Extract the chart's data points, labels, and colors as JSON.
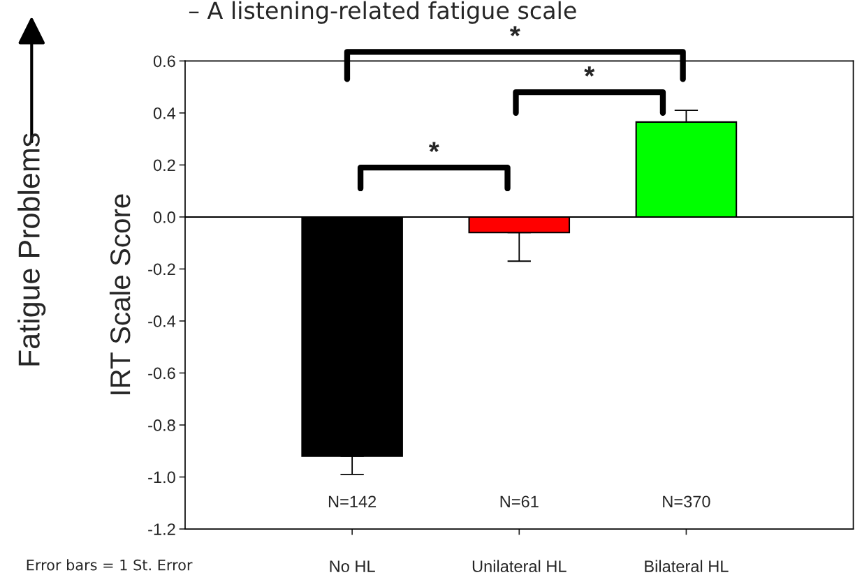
{
  "chart_data": {
    "type": "bar",
    "title": "– A listening-related fatigue scale",
    "ylabel": "IRT Scale Score",
    "categories": [
      "No HL",
      "Unilateral HL",
      "Bilateral HL"
    ],
    "values": [
      -0.92,
      -0.06,
      0.365
    ],
    "colors": [
      "#000000",
      "#ff0000",
      "#00ff00"
    ],
    "errors": [
      [
        -0.99,
        -0.92
      ],
      [
        -0.17,
        -0.06
      ],
      [
        0.365,
        0.41
      ]
    ],
    "ylim": [
      -1.2,
      0.6
    ],
    "yticks": [
      {
        "value": -1.2,
        "label": "-1.2"
      },
      {
        "value": -1.0,
        "label": "-1.0"
      },
      {
        "value": -0.8,
        "label": "-0.8"
      },
      {
        "value": -0.6,
        "label": "-0.6"
      },
      {
        "value": -0.4,
        "label": "-0.4"
      },
      {
        "value": -0.2,
        "label": "-0.2"
      },
      {
        "value": 0,
        "label": "0.0"
      },
      {
        "value": 0.2,
        "label": "0.2"
      },
      {
        "value": 0.4,
        "label": "0.4"
      },
      {
        "value": 0.6,
        "label": "0.6"
      }
    ],
    "ref_lines": [
      {
        "axis": "y",
        "value": 0,
        "color": "#000000"
      }
    ],
    "grid": false,
    "annotations": [
      "N=142",
      "N=61",
      "N=370",
      "*",
      "*",
      "*",
      "Fatigue Problems",
      "Error bars = 1 St. Error"
    ]
  }
}
